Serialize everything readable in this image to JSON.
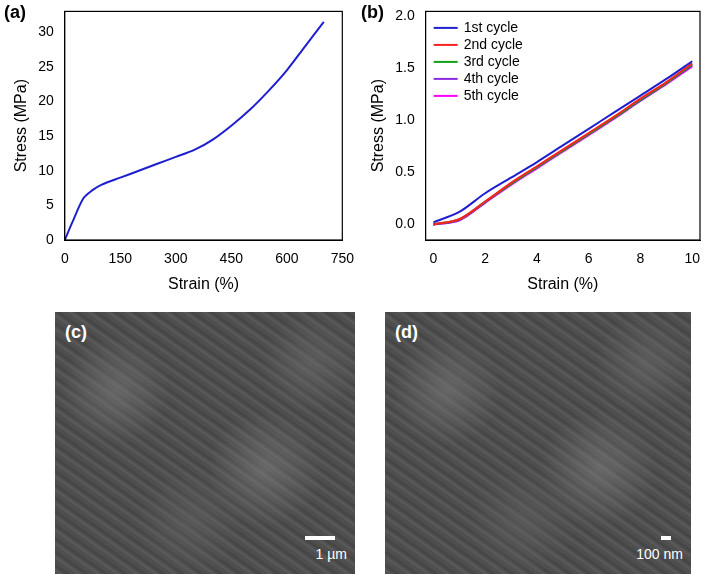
{
  "chart_data": [
    {
      "type": "line",
      "panel_label": "(a)",
      "x_label": "Strain (%)",
      "y_label": "Stress (MPa)",
      "x": [
        0,
        20,
        50,
        75,
        100,
        150,
        200,
        250,
        300,
        350,
        400,
        450,
        500,
        550,
        600,
        650,
        700
      ],
      "values": [
        0,
        2.5,
        6,
        7.2,
        8,
        9,
        10,
        11,
        12,
        13,
        14.5,
        16.5,
        18.8,
        21.5,
        24.5,
        28,
        31.5
      ],
      "color": "#1f1fd0",
      "xlim": [
        0,
        750
      ],
      "xticks": [
        0,
        150,
        300,
        450,
        600,
        750
      ],
      "ylim": [
        0,
        33
      ],
      "yticks": [
        0,
        5,
        10,
        15,
        20,
        25,
        30
      ],
      "grid": false
    },
    {
      "type": "line",
      "panel_label": "(b)",
      "x_label": "Strain (%)",
      "y_label": "Stress (MPa)",
      "x": [
        0,
        1,
        2,
        3,
        4,
        5,
        6,
        7,
        8,
        9,
        10
      ],
      "series": [
        {
          "name": "1st cycle",
          "color": "#1f1fd0",
          "values": [
            0.02,
            0.12,
            0.3,
            0.45,
            0.6,
            0.76,
            0.92,
            1.08,
            1.24,
            1.4,
            1.57
          ]
        },
        {
          "name": "2nd cycle",
          "color": "#ff2020",
          "values": [
            0,
            0.05,
            0.22,
            0.4,
            0.56,
            0.72,
            0.88,
            1.04,
            1.21,
            1.37,
            1.55
          ]
        },
        {
          "name": "3rd cycle",
          "color": "#10a010",
          "values": [
            0,
            0.05,
            0.22,
            0.39,
            0.55,
            0.71,
            0.87,
            1.03,
            1.2,
            1.36,
            1.54
          ]
        },
        {
          "name": "4th cycle",
          "color": "#8a2be2",
          "values": [
            0,
            0.04,
            0.21,
            0.39,
            0.55,
            0.71,
            0.87,
            1.03,
            1.19,
            1.36,
            1.53
          ]
        },
        {
          "name": "5th cycle",
          "color": "#ff00ff",
          "values": [
            0,
            0.04,
            0.21,
            0.38,
            0.54,
            0.7,
            0.86,
            1.02,
            1.19,
            1.35,
            1.52
          ]
        }
      ],
      "xlim": [
        -0.3,
        10.3
      ],
      "xticks": [
        0,
        2,
        4,
        6,
        8,
        10
      ],
      "ylim": [
        -0.15,
        2.05
      ],
      "yticks": [
        {
          "value": 0,
          "label": "0.0"
        },
        {
          "value": 0.5,
          "label": "0.5"
        },
        {
          "value": 1,
          "label": "1.0"
        },
        {
          "value": 1.5,
          "label": "1.5"
        },
        {
          "value": 2,
          "label": "2.0"
        }
      ],
      "grid": false,
      "legend": "upper left"
    }
  ],
  "images": [
    {
      "panel_label": "(c)",
      "scale_bar": "1 µm"
    },
    {
      "panel_label": "(d)",
      "scale_bar": "100 nm"
    }
  ]
}
